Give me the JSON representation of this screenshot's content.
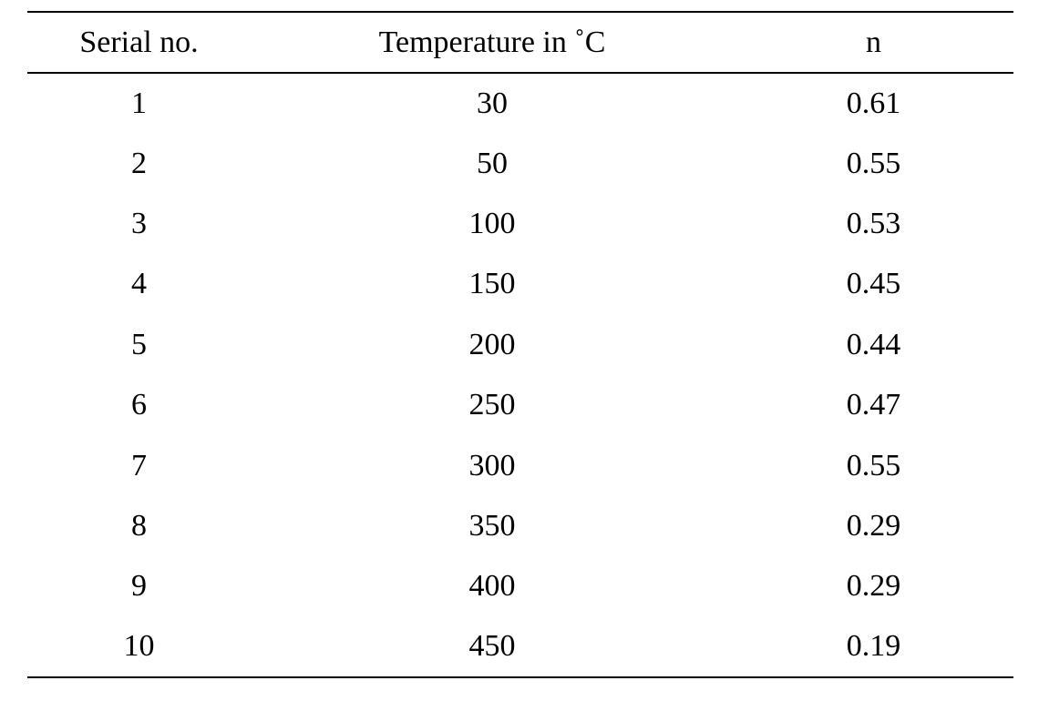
{
  "table": {
    "headers": [
      "Serial no.",
      "Temperature in ˚C",
      "n"
    ],
    "rows": [
      [
        "1",
        "30",
        "0.61"
      ],
      [
        "2",
        "50",
        "0.55"
      ],
      [
        "3",
        "100",
        "0.53"
      ],
      [
        "4",
        "150",
        "0.45"
      ],
      [
        "5",
        "200",
        "0.44"
      ],
      [
        "6",
        "250",
        "0.47"
      ],
      [
        "7",
        "300",
        "0.55"
      ],
      [
        "8",
        "350",
        "0.29"
      ],
      [
        "9",
        "400",
        "0.29"
      ],
      [
        "10",
        "450",
        "0.19"
      ]
    ]
  }
}
